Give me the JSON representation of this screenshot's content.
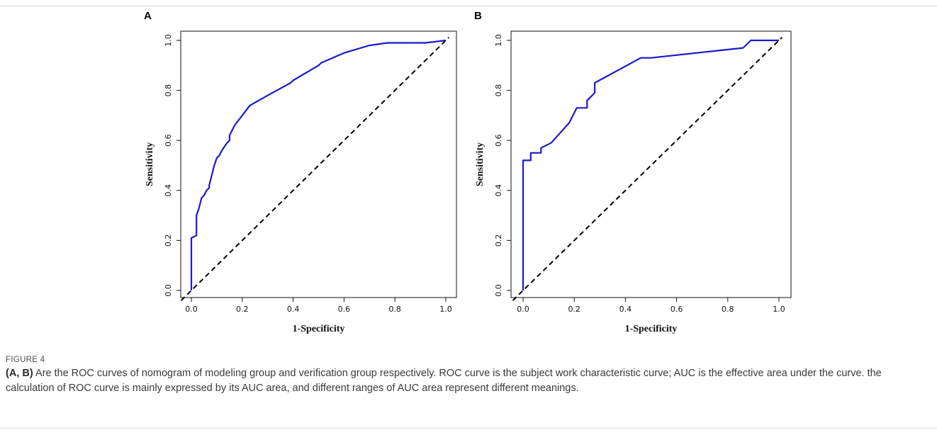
{
  "panels": [
    {
      "label": "A"
    },
    {
      "label": "B"
    }
  ],
  "caption": {
    "figure_label": "FIGURE 4",
    "bold_lead": "(A, B)",
    "text": " Are the ROC curves of nomogram of modeling group and verification group respectively. ROC curve is the subject work characteristic curve; AUC is the effective area under the curve. the calculation of ROC curve is mainly expressed by its AUC area, and different ranges of AUC area represent different meanings."
  },
  "colors": {
    "curve": "#1a1acc",
    "reference": "#000000"
  },
  "chart_data": [
    {
      "type": "line",
      "panel": "A",
      "title": "",
      "xlabel": "1-Specificity",
      "ylabel": "Sensitivity",
      "xlim": [
        0,
        1
      ],
      "ylim": [
        0,
        1
      ],
      "xticks": [
        "0.0",
        "0.2",
        "0.4",
        "0.6",
        "0.8",
        "1.0"
      ],
      "yticks": [
        "0.0",
        "0.2",
        "0.4",
        "0.6",
        "0.8",
        "1.0"
      ],
      "grid": false,
      "series": [
        {
          "x": [
            0,
            0,
            0.02,
            0.02,
            0.03,
            0.04,
            0.05,
            0.06,
            0.07,
            0.07,
            0.08,
            0.09,
            0.1,
            0.11,
            0.12,
            0.14,
            0.15,
            0.15,
            0.17,
            0.2,
            0.23,
            0.3,
            0.39,
            0.4,
            0.5,
            0.51,
            0.6,
            0.7,
            0.77,
            0.92,
            1.0
          ],
          "y": [
            0,
            0.21,
            0.22,
            0.3,
            0.33,
            0.37,
            0.38,
            0.4,
            0.41,
            0.42,
            0.46,
            0.5,
            0.53,
            0.54,
            0.56,
            0.59,
            0.6,
            0.62,
            0.66,
            0.7,
            0.74,
            0.78,
            0.83,
            0.84,
            0.9,
            0.91,
            0.95,
            0.98,
            0.99,
            0.99,
            1.0
          ]
        },
        {
          "x": [
            0,
            1
          ],
          "y": [
            0,
            1
          ]
        }
      ]
    },
    {
      "type": "line",
      "panel": "B",
      "title": "",
      "xlabel": "1-Specificity",
      "ylabel": "Sensitivity",
      "xlim": [
        0,
        1
      ],
      "ylim": [
        0,
        1
      ],
      "xticks": [
        "0.0",
        "0.2",
        "0.4",
        "0.6",
        "0.8",
        "1.0"
      ],
      "yticks": [
        "0.0",
        "0.2",
        "0.4",
        "0.6",
        "0.8",
        "1.0"
      ],
      "grid": false,
      "series": [
        {
          "x": [
            0,
            0,
            0.03,
            0.03,
            0.07,
            0.07,
            0.11,
            0.18,
            0.21,
            0.21,
            0.25,
            0.25,
            0.28,
            0.28,
            0.46,
            0.5,
            0.86,
            0.89,
            0.89,
            1.0
          ],
          "y": [
            0,
            0.52,
            0.52,
            0.55,
            0.55,
            0.57,
            0.59,
            0.67,
            0.73,
            0.73,
            0.73,
            0.76,
            0.79,
            0.83,
            0.93,
            0.93,
            0.97,
            1.0,
            1.0,
            1.0
          ]
        },
        {
          "x": [
            0,
            1
          ],
          "y": [
            0,
            1
          ]
        }
      ]
    }
  ]
}
